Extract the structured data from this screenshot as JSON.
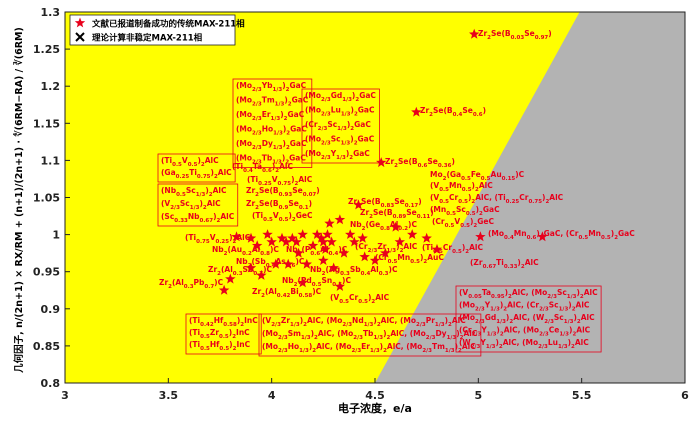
{
  "chart_data": {
    "type": "scatter",
    "xlabel": "电子浓度，e/a",
    "ylabel": "几何因子, n/(2n+1) × RX/RM + (n+1)/(2n+1) · ∜(6RM−RA) / ∛(6RM)",
    "xlim": [
      3,
      6
    ],
    "ylim": [
      0.8,
      1.3
    ],
    "xticks": [
      3,
      3.5,
      4,
      4.5,
      5,
      5.5,
      6
    ],
    "yticks": [
      0.8,
      0.85,
      0.9,
      0.95,
      1,
      1.05,
      1.1,
      1.15,
      1.2,
      1.25,
      1.3
    ],
    "background": "#ffff00",
    "region": {
      "color": "#b3b3b3",
      "boundary": [
        [
          4.5,
          0.8
        ],
        [
          5.49,
          1.3
        ]
      ]
    },
    "series": [
      {
        "name": "文献已报道制备成功的传统MAX-211相",
        "color": "#e8001c",
        "marker": "star",
        "x": [
          4.98,
          4.7,
          4.53,
          5.01,
          5.31,
          4.75,
          4.62,
          4.6,
          4.42,
          4.33,
          4.28,
          4.38,
          4.4,
          4.45,
          4.5,
          4.35,
          4.3,
          4.25,
          4.26,
          4.24,
          4.27,
          4.22,
          4.29,
          4.2,
          4.1,
          4.05,
          4.07,
          4.0,
          3.98,
          3.93,
          3.9,
          3.83,
          4.12,
          4.15,
          4.13,
          4.08,
          4.02,
          3.95,
          3.9,
          3.8,
          3.77,
          4.17,
          4.25,
          4.33,
          4.15,
          4.55,
          4.44,
          4.68,
          4.8
        ],
        "y": [
          1.27,
          1.165,
          1.097,
          0.997,
          0.997,
          0.995,
          0.99,
          1.01,
          1.04,
          1.02,
          1.015,
          1.0,
          0.99,
          0.97,
          0.965,
          0.975,
          0.955,
          0.99,
          0.98,
          0.995,
          1.0,
          1.0,
          0.99,
          0.985,
          0.995,
          0.995,
          0.99,
          0.99,
          1.0,
          0.985,
          0.995,
          0.997,
          0.99,
          1.0,
          0.975,
          0.96,
          0.96,
          0.945,
          0.955,
          0.94,
          0.925,
          0.96,
          0.965,
          0.93,
          0.935,
          0.975,
          0.995,
          1.0,
          0.98
        ]
      },
      {
        "name": "理论计算非稳定MAX-211相",
        "color": "#000000",
        "marker": "x",
        "x": [],
        "y": []
      }
    ],
    "legend": "upper left",
    "label_groups": [
      [
        "(Mo2/3Yb1/3)2GaC",
        "(Mo2/3Tm1/3)2GaC",
        "(Mo2/3Er1/3)2GaC",
        "(Mo2/3Ho1/3)2GaC",
        "(Mo2/3Dy1/3)2GaC",
        "(Mo2/3Tb1/3)2GaC"
      ],
      [
        "(Mo2/3Gd1/3)2GaC",
        "(Mo2/3Lu1/3)2GaC",
        "(Cr2/3Sc1/3)2GaC",
        "(Mo2/3Sc1/3)2GaC",
        "(Mo2/3Y1/3)2GaC"
      ],
      [
        "(Ti0.5V0.5)2AlC",
        "(Ga0.25Ti0.75)2AlC"
      ],
      [
        "(Nb0.5Sc1/3)2AlC",
        "(V2/3Sc1/3)2AlC",
        "(Sc0.33Nb0.67)2AlC"
      ],
      [
        "(Ti0.42Hf0.58)2InC",
        "(Ti0.5Zr0.5)2InC",
        "(Ti0.5Hf0.5)2InC"
      ],
      [
        "(V2/3Zr1/3)2AlC, (Mo2/3Nd1/3)2AlC, (Mo2/3Pr1/3)2AlC",
        "(Mo2/3Sm1/3)2AlC, (Mo2/3Tb1/3)2AlC, (Mo2/3Dy1/3)2AlC",
        "(Mo2/3Ho1/3)2AlC, (Mo2/3Er1/3)2AlC, (Mo2/3Tm1/3)2AlC"
      ],
      [
        "(V0.05Ta0.95)2AlC, (Mo2/3Sc1/3)2AlC",
        "(Mo2/3Y1/3)2AlC, (Cr2/3Sc1/3)2AlC",
        "(Mo2/3Gd1/3)2AlC, (W2/3Sc1/3)2AlC",
        "(Cr2/3Y1/3)2AlC, (Mo2/3Ce1/3)2AlC",
        "(W2/3Y1/3)2AlC, (Mo2/3Lu1/3)2AlC"
      ]
    ],
    "labels": [
      "(Ti0.4Ta0.6)2AlC",
      "(Ti0.25V0.75)2AlC",
      "Zr2Se(B0.03Se0.97)",
      "Zr2Se(B0.4Se0.6)",
      "Zr2Se(B0.6Se0.36)",
      "Mo2(Ga0.5Fe0.5Au0.15)C",
      "(V0.5Mn0.5)2AlC",
      "(V0.5Cr0.5)2AlC, (Ti0.25Cr0.75)2AlC",
      "(Mn0.5Sc0.5)2GaC",
      "(Cr0.5V0.5)2GeC",
      "Zr2Se(B0.93Se0.07)",
      "Zr2Se(B0.9Se0.1)",
      "(Ti0.5V0.5)2GeC",
      "Zr2Se(B0.83Se0.17)",
      "Zr2Se(B0.89Se0.11)",
      "Nb2(Ge0.8Al0.2)C",
      "(Ti0.75V0.25)2AlC",
      "Nb2(Au0.2Al0.8)C",
      "Nb2(P0.6Al0.4)C",
      "(Cr2/3Zr1/3)2AlC",
      "(Ti0.5Cr0.5)2AlC",
      "(Mo0.4Mn0.6)2GaC, (Cr0.5Mn0.5)2GaC",
      "(Zr0.67Ti0.33)2AlC",
      "(Cr0.5Mn0.5)2AuC",
      "Nb2(Sb0.4As0.6)C",
      "Zr2(Al0.3Sb0.7)C",
      "Zr2(Al0.3Pb0.7)C",
      "Nb2(Pd0.5Sn0.5)C",
      "Nb2(Ag0.3Sb0.4Al0.3)C",
      "Zr2(Al0.42Bi0.58)C",
      "(V0.5Cr0.5)2AlC"
    ]
  }
}
